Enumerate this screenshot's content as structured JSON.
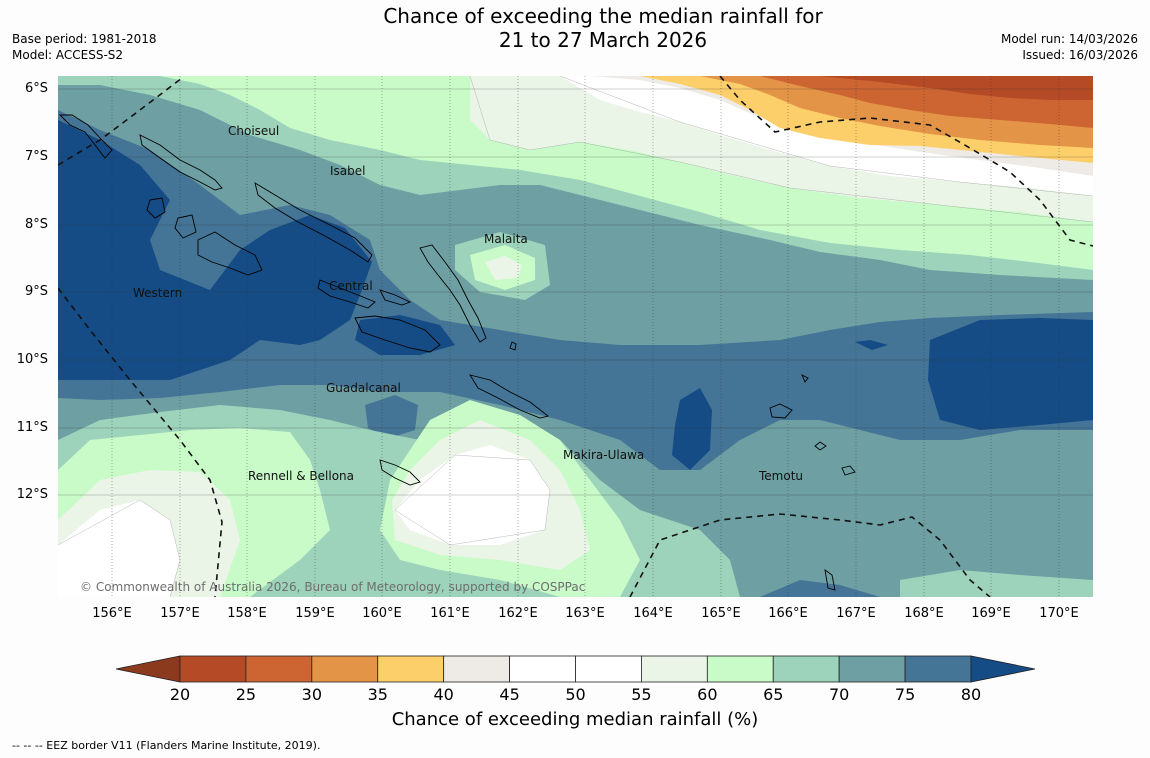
{
  "title": {
    "line1": "Chance of exceeding the median rainfall for",
    "line2": "21 to 27 March 2026"
  },
  "meta": {
    "base_period": "Base period: 1981-2018",
    "model": "Model: ACCESS-S2",
    "model_run": "Model run: 14/03/2026",
    "issued": "Issued: 16/03/2026"
  },
  "axes": {
    "latitudes": [
      "6°S",
      "7°S",
      "8°S",
      "9°S",
      "10°S",
      "11°S",
      "12°S"
    ],
    "longitudes": [
      "156°E",
      "157°E",
      "158°E",
      "159°E",
      "160°E",
      "161°E",
      "162°E",
      "163°E",
      "164°E",
      "165°E",
      "166°E",
      "167°E",
      "168°E",
      "169°E",
      "170°E"
    ]
  },
  "place_labels": [
    "Choiseul",
    "Isabel",
    "Malaita",
    "Western",
    "Central",
    "Guadalcanal",
    "Makira-Ulawa",
    "Rennell & Bellona",
    "Temotu"
  ],
  "copyright": "© Commonwealth of Australia 2026, Bureau of Meteorology, supported by COSPPac",
  "colorbar": {
    "ticks": [
      "20",
      "25",
      "30",
      "35",
      "40",
      "45",
      "50",
      "55",
      "60",
      "65",
      "70",
      "75",
      "80"
    ],
    "colors": [
      "#8c3a1e",
      "#b44a26",
      "#cd6532",
      "#e39447",
      "#fdcf6a",
      "#eeebe6",
      "#ffffff",
      "#ffffff",
      "#eaf5e8",
      "#c8fbc8",
      "#9dd2bb",
      "#6d9fa3",
      "#447596",
      "#154c85"
    ],
    "label": "Chance of exceeding median rainfall (%)"
  },
  "footnote": "--  --  -- EEZ border V11 (Flanders Marine Institute, 2019)."
}
